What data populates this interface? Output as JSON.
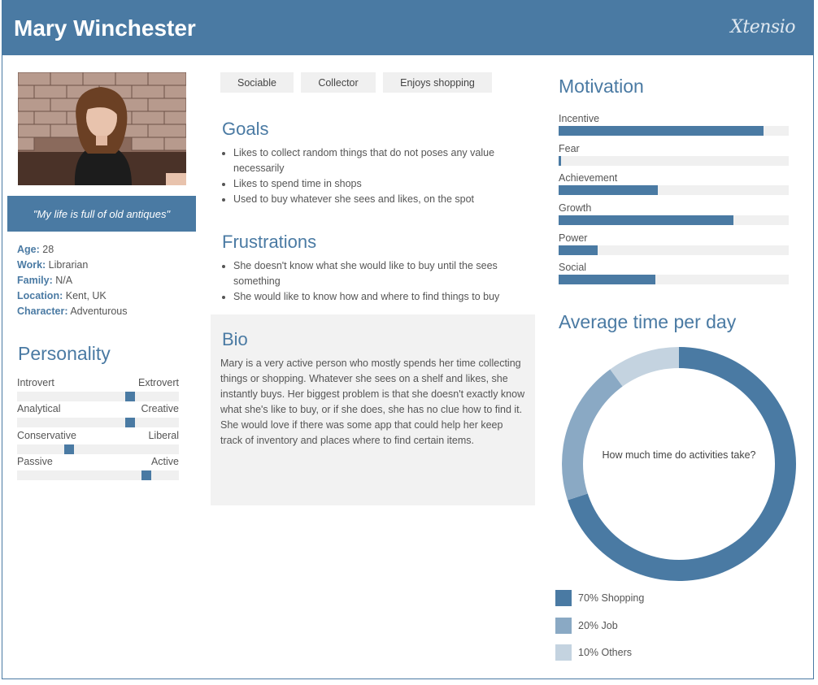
{
  "header": {
    "title": "Mary Winchester",
    "logo": "Xtensio"
  },
  "profile": {
    "quote": "\"My life is full of old antiques\"",
    "facts": [
      {
        "label": "Age:",
        "value": "28"
      },
      {
        "label": "Work:",
        "value": "Librarian"
      },
      {
        "label": "Family:",
        "value": "N/A"
      },
      {
        "label": "Location:",
        "value": "Kent, UK"
      },
      {
        "label": "Character:",
        "value": "Adventurous"
      }
    ]
  },
  "personality": {
    "title": "Personality",
    "sliders": [
      {
        "left": "Introvert",
        "right": "Extrovert",
        "value": 0.71
      },
      {
        "left": "Analytical",
        "right": "Creative",
        "value": 0.71
      },
      {
        "left": "Conservative",
        "right": "Liberal",
        "value": 0.31
      },
      {
        "left": "Passive",
        "right": "Active",
        "value": 0.82
      }
    ]
  },
  "tags": [
    "Sociable",
    "Collector",
    "Enjoys shopping"
  ],
  "goals": {
    "title": "Goals",
    "items": [
      "Likes to collect random things that do not poses any value necessarily",
      "Likes to spend time in shops",
      "Used to buy whatever she sees and likes, on the spot"
    ]
  },
  "frustrations": {
    "title": "Frustrations",
    "items": [
      "She doesn't know what she would like to buy until the sees something",
      "She would like to know how and where to find things to buy"
    ]
  },
  "bio": {
    "title": "Bio",
    "text": "Mary is a very active person who mostly spends her time collecting things or shopping. Whatever she sees on a shelf and likes, she instantly buys. Her biggest problem is that she doesn't exactly know what she's like to buy, or if she does, she has no clue how to find it. She would love if there was some app that could help her keep track of inventory and places where to find certain items."
  },
  "motivation": {
    "title": "Motivation",
    "items": [
      {
        "label": "Incentive",
        "value": 0.89
      },
      {
        "label": "Fear",
        "value": 0.01
      },
      {
        "label": "Achievement",
        "value": 0.43
      },
      {
        "label": "Growth",
        "value": 0.76
      },
      {
        "label": "Power",
        "value": 0.17
      },
      {
        "label": "Social",
        "value": 0.42
      }
    ]
  },
  "time": {
    "title": "Average time per day",
    "center_text": "How much time do activities take?",
    "segments": [
      {
        "label": "70%  Shopping",
        "value": 70,
        "color": "#4a7aa3"
      },
      {
        "label": "20%  Job",
        "value": 20,
        "color": "#8aa9c4"
      },
      {
        "label": "10%  Others",
        "value": 10,
        "color": "#c4d3e0"
      }
    ]
  },
  "colors": {
    "accent": "#4a7aa3",
    "panel": "#f2f2f2"
  }
}
